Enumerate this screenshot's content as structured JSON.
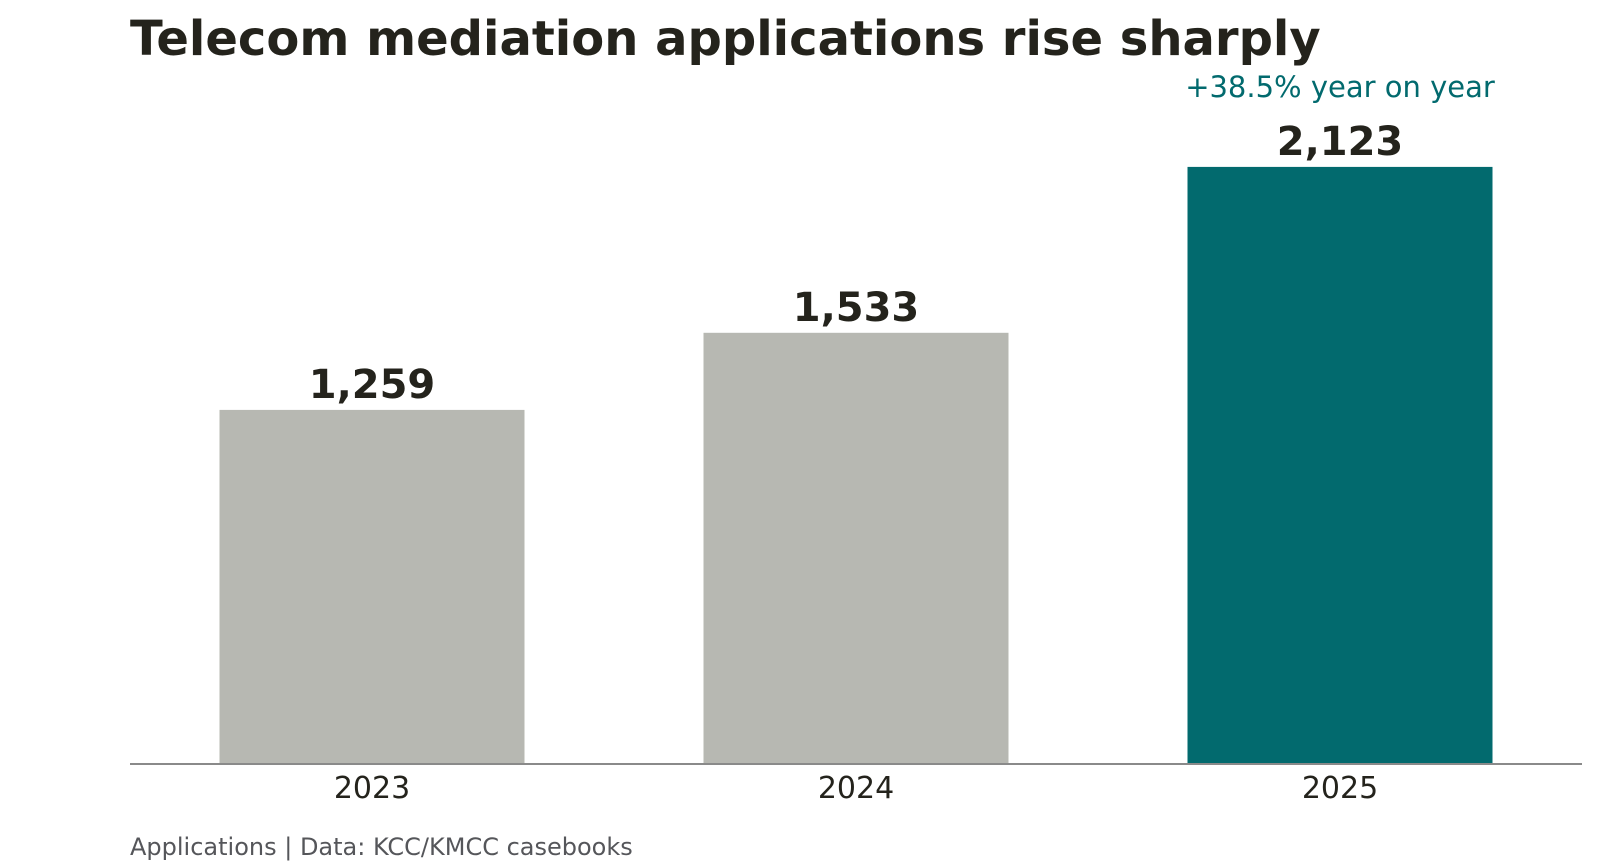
{
  "chart_data": {
    "type": "bar",
    "title": "Telecom mediation applications rise sharply",
    "categories": [
      "2023",
      "2024",
      "2025"
    ],
    "values": [
      1259,
      1533,
      2123
    ],
    "value_labels": [
      "1,259",
      "1,533",
      "2,123"
    ],
    "highlight_index": 2,
    "annotation": "+38.5% year on year",
    "footer": "Applications | Data: KCC/KMCC casebooks",
    "xlabel": "",
    "ylabel": "",
    "ylim": [
      0,
      2400
    ],
    "grid": false,
    "legend": "none",
    "colors": {
      "bar_default": "#b7b8b2",
      "bar_highlight": "#026a6e",
      "annotation": "#026a6e",
      "value_label": "#24231c",
      "tick_label": "#24231c",
      "axis": "#8a8a8a"
    }
  }
}
